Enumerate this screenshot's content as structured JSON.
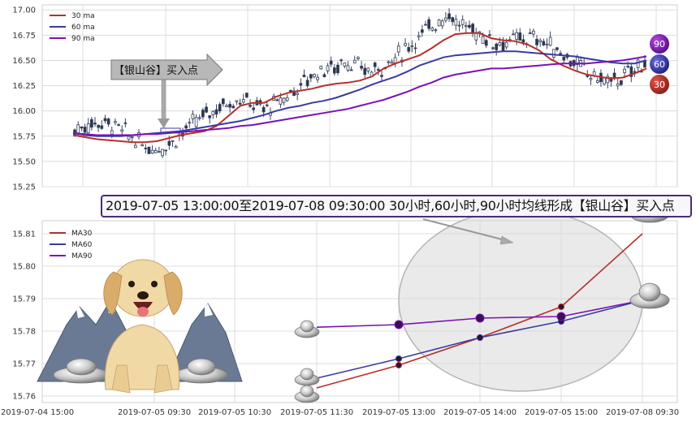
{
  "colors": {
    "ma30": "#b5302a",
    "ma60": "#3b3ba0",
    "ma90": "#7a12b8",
    "candle_up": "#333f5a",
    "candle_down": "#2a3550"
  },
  "annotation": {
    "buy_point_label": "【银山谷】买入点"
  },
  "banner": {
    "text": "2019-07-05 13:00:00至2019-07-08 09:30:00 30小时,60小时,90小时均线形成【银山谷】买入点"
  },
  "badges": {
    "b90": "90",
    "b60": "60",
    "b30": "30"
  },
  "illustration": {
    "subject": "dog-with-silver-ingots",
    "ingot_icon": "silver-ingot-icon"
  },
  "chart_data": [
    {
      "type": "candlestick",
      "ylim": [
        15.25,
        17.05
      ],
      "yticks": [
        "17.00",
        "16.75",
        "16.50",
        "16.25",
        "16.00",
        "15.75",
        "15.50",
        "15.25"
      ],
      "legend": [
        "30 ma",
        "60 ma",
        "90 ma"
      ],
      "legend_position": "top-left",
      "grid": true,
      "series": [
        {
          "name": "30 ma",
          "values": [
            15.76,
            15.74,
            15.72,
            15.71,
            15.7,
            15.69,
            15.69,
            15.7,
            15.73,
            15.76,
            15.78,
            15.8,
            15.85,
            15.95,
            16.05,
            16.08,
            16.08,
            16.14,
            16.18,
            16.2,
            16.22,
            16.25,
            16.27,
            16.28,
            16.3,
            16.34,
            16.42,
            16.47,
            16.51,
            16.55,
            16.62,
            16.7,
            16.76,
            16.77,
            16.77,
            16.72,
            16.7,
            16.69,
            16.66,
            16.6,
            16.51,
            16.45,
            16.4,
            16.36,
            16.34,
            16.32,
            16.33,
            16.37,
            16.42
          ]
        },
        {
          "name": "60 ma",
          "values": [
            15.78,
            15.76,
            15.75,
            15.75,
            15.75,
            15.76,
            15.77,
            15.78,
            15.79,
            15.8,
            15.82,
            15.84,
            15.86,
            15.88,
            15.9,
            15.93,
            15.96,
            16.0,
            16.03,
            16.05,
            16.08,
            16.1,
            16.13,
            16.17,
            16.21,
            16.26,
            16.3,
            16.34,
            16.39,
            16.45,
            16.49,
            16.53,
            16.55,
            16.56,
            16.57,
            16.58,
            16.59,
            16.59,
            16.58,
            16.57,
            16.56,
            16.55,
            16.54,
            16.52,
            16.5,
            16.48,
            16.47,
            16.47,
            16.5
          ]
        },
        {
          "name": "90 ma",
          "values": [
            15.78,
            15.77,
            15.76,
            15.76,
            15.76,
            15.76,
            15.77,
            15.77,
            15.78,
            15.79,
            15.8,
            15.81,
            15.82,
            15.83,
            15.85,
            15.86,
            15.88,
            15.9,
            15.92,
            15.94,
            15.96,
            15.98,
            16.0,
            16.02,
            16.05,
            16.08,
            16.11,
            16.15,
            16.19,
            16.24,
            16.28,
            16.33,
            16.36,
            16.38,
            16.4,
            16.42,
            16.42,
            16.43,
            16.44,
            16.45,
            16.46,
            16.47,
            16.47,
            16.47,
            16.48,
            16.49,
            16.5,
            16.52,
            16.54
          ]
        }
      ]
    },
    {
      "type": "line",
      "ylim": [
        15.758,
        15.814
      ],
      "yticks": [
        "15.81",
        "15.80",
        "15.79",
        "15.78",
        "15.77",
        "15.76"
      ],
      "xticks": [
        "2019-07-04 15:00",
        "2019-07-05 09:30",
        "2019-07-05 10:30",
        "2019-07-05 11:30",
        "2019-07-05 13:00",
        "2019-07-05 14:00",
        "2019-07-05 15:00",
        "2019-07-08 09:30"
      ],
      "x": [
        "2019-07-05 11:30",
        "2019-07-05 13:00",
        "2019-07-05 14:00",
        "2019-07-05 15:00",
        "2019-07-08 09:30"
      ],
      "legend": [
        "MA30",
        "MA60",
        "MA90"
      ],
      "legend_position": "top-left",
      "grid": true,
      "series": [
        {
          "name": "MA30",
          "values": [
            15.7625,
            15.7695,
            15.778,
            15.7875,
            15.81
          ]
        },
        {
          "name": "MA60",
          "values": [
            15.7655,
            15.7715,
            15.778,
            15.783,
            15.7895
          ]
        },
        {
          "name": "MA90",
          "values": [
            15.7812,
            15.782,
            15.784,
            15.7845,
            15.7895
          ]
        }
      ]
    }
  ]
}
